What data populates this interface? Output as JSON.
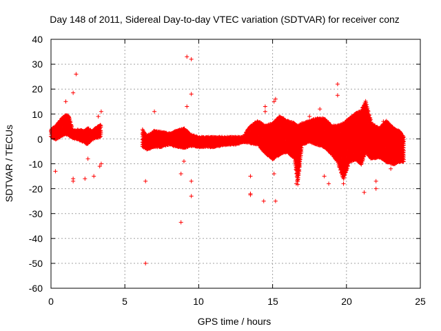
{
  "chart_data": {
    "type": "scatter",
    "title": "Day 148 of 2011, Sidereal Day-to-day VTEC variation (SDTVAR) for receiver conz",
    "xlabel": "GPS time / hours",
    "ylabel": "SDTVAR / TECUs",
    "xlim": [
      0,
      25
    ],
    "ylim": [
      -60,
      40
    ],
    "xticks": [
      "0",
      "5",
      "10",
      "15",
      "20",
      "25"
    ],
    "yticks": [
      "-60",
      "-50",
      "-40",
      "-30",
      "-20",
      "-10",
      "0",
      "10",
      "20",
      "30",
      "40"
    ],
    "grid": true,
    "marker": "+",
    "colors": {
      "series": "#ff0000"
    },
    "series": [
      {
        "name": "SDTVAR",
        "band": [
          [
            0.0,
            1.0,
            3.5
          ],
          [
            0.3,
            0.0,
            5.0
          ],
          [
            0.5,
            0.5,
            6.5
          ],
          [
            0.8,
            1.5,
            8.5
          ],
          [
            1.0,
            2.0,
            9.5
          ],
          [
            1.2,
            1.5,
            9.0
          ],
          [
            1.5,
            0.5,
            3.0
          ],
          [
            1.8,
            0.0,
            3.5
          ],
          [
            2.2,
            -1.0,
            3.0
          ],
          [
            2.5,
            -2.0,
            4.0
          ],
          [
            2.8,
            0.0,
            3.0
          ],
          [
            3.0,
            0.5,
            4.0
          ],
          [
            3.4,
            1.0,
            5.5
          ],
          [
            6.2,
            -3.0,
            3.5
          ],
          [
            6.5,
            -4.0,
            1.0
          ],
          [
            7.0,
            -3.0,
            3.0
          ],
          [
            7.5,
            -3.0,
            2.5
          ],
          [
            8.0,
            -2.0,
            2.0
          ],
          [
            8.5,
            -3.0,
            3.0
          ],
          [
            9.0,
            -3.5,
            4.0
          ],
          [
            9.5,
            -2.5,
            1.5
          ],
          [
            10.0,
            -3.0,
            0.5
          ],
          [
            10.5,
            -3.0,
            0.5
          ],
          [
            11.0,
            -3.0,
            0.5
          ],
          [
            11.5,
            -2.5,
            0.5
          ],
          [
            12.0,
            -2.0,
            0.5
          ],
          [
            12.5,
            -2.0,
            0.5
          ],
          [
            13.0,
            -1.0,
            0.5
          ],
          [
            13.5,
            -1.5,
            5.0
          ],
          [
            14.0,
            -2.0,
            7.0
          ],
          [
            14.5,
            -5.5,
            5.0
          ],
          [
            15.0,
            -8.0,
            6.0
          ],
          [
            15.5,
            -6.0,
            9.0
          ],
          [
            16.0,
            -5.0,
            7.0
          ],
          [
            16.5,
            -8.0,
            6.0
          ],
          [
            16.7,
            -18.0,
            5.0
          ],
          [
            17.0,
            -2.0,
            6.0
          ],
          [
            17.5,
            -1.0,
            7.0
          ],
          [
            18.0,
            -2.0,
            8.0
          ],
          [
            18.5,
            -3.0,
            8.0
          ],
          [
            19.0,
            -6.0,
            5.0
          ],
          [
            19.4,
            -9.0,
            5.0
          ],
          [
            19.8,
            -16.0,
            6.0
          ],
          [
            20.2,
            -9.0,
            8.0
          ],
          [
            20.6,
            -8.0,
            10.0
          ],
          [
            21.0,
            -10.0,
            11.0
          ],
          [
            21.3,
            -5.0,
            15.0
          ],
          [
            21.7,
            -8.0,
            6.0
          ],
          [
            22.2,
            -7.0,
            4.0
          ],
          [
            22.7,
            -9.0,
            7.0
          ],
          [
            23.2,
            -10.0,
            4.0
          ],
          [
            23.6,
            -9.0,
            3.0
          ],
          [
            23.9,
            -9.0,
            0.5
          ]
        ],
        "extra_points": [
          [
            0.3,
            -13
          ],
          [
            1.0,
            15
          ],
          [
            1.5,
            18.5
          ],
          [
            1.7,
            26
          ],
          [
            1.5,
            -16
          ],
          [
            1.5,
            -17
          ],
          [
            2.3,
            -16
          ],
          [
            2.9,
            -15
          ],
          [
            3.2,
            9
          ],
          [
            3.4,
            11
          ],
          [
            3.4,
            -10
          ],
          [
            3.3,
            -11
          ],
          [
            2.5,
            -8
          ],
          [
            6.4,
            -17
          ],
          [
            6.4,
            -50
          ],
          [
            7.0,
            11
          ],
          [
            8.8,
            -33.5
          ],
          [
            8.8,
            -14
          ],
          [
            9.2,
            33
          ],
          [
            9.5,
            32
          ],
          [
            9.5,
            18
          ],
          [
            9.2,
            13
          ],
          [
            9.5,
            -17
          ],
          [
            9.5,
            -23
          ],
          [
            9.0,
            -9
          ],
          [
            13.5,
            -15
          ],
          [
            13.5,
            -22
          ],
          [
            13.5,
            -22.5
          ],
          [
            14.4,
            -25
          ],
          [
            14.5,
            13
          ],
          [
            14.5,
            11
          ],
          [
            15.1,
            15
          ],
          [
            15.2,
            16
          ],
          [
            15.1,
            -14
          ],
          [
            15.2,
            -25
          ],
          [
            16.6,
            -18
          ],
          [
            17.5,
            9
          ],
          [
            18.2,
            12
          ],
          [
            18.5,
            -15
          ],
          [
            18.8,
            -18
          ],
          [
            19.4,
            22
          ],
          [
            19.4,
            17.5
          ],
          [
            19.8,
            -18
          ],
          [
            21.2,
            -21.5
          ],
          [
            22.0,
            -17
          ],
          [
            22.0,
            -20
          ],
          [
            22.5,
            7
          ],
          [
            23.0,
            -12
          ]
        ]
      }
    ]
  }
}
